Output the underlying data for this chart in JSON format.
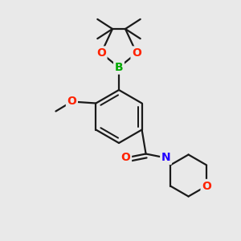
{
  "bg_color": "#e9e9e9",
  "bond_color": "#1a1a1a",
  "bond_width": 1.6,
  "atom_colors": {
    "B": "#00aa00",
    "O": "#ff2200",
    "N": "#2200ff",
    "C": "#1a1a1a"
  },
  "font_size_atom": 10
}
